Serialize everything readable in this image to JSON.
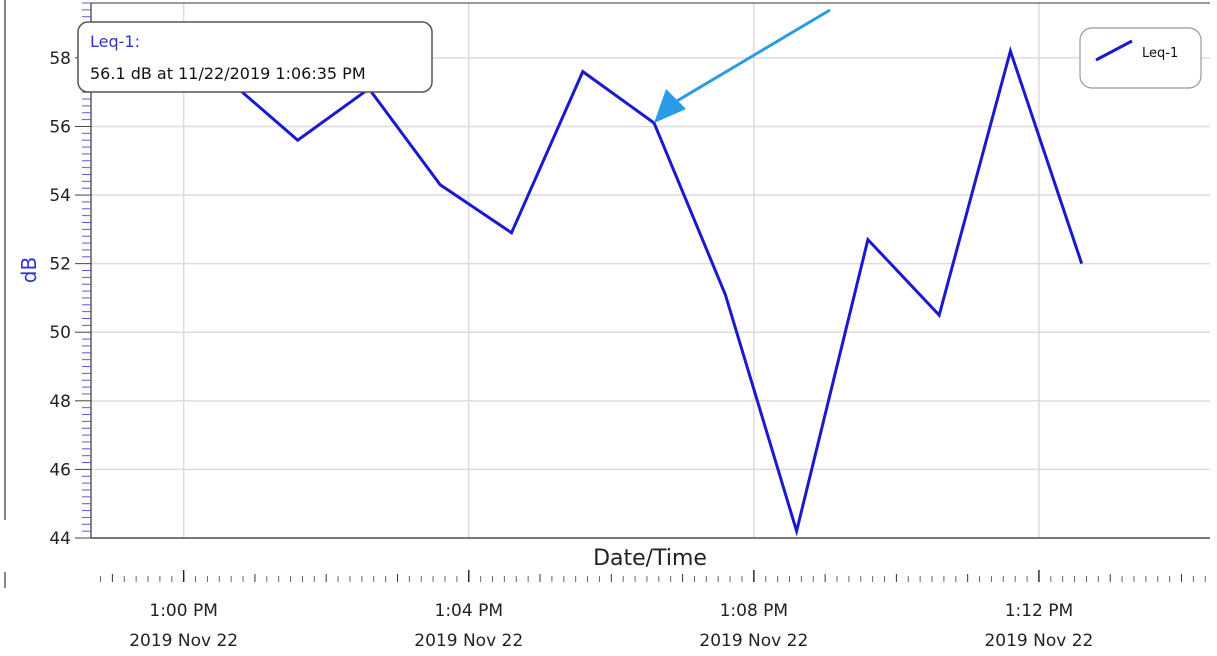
{
  "chart_data": {
    "type": "line",
    "xlabel": "Date/Time",
    "ylabel": "dB",
    "ylim": [
      44,
      59.6
    ],
    "y_ticks": [
      44,
      46,
      48,
      50,
      52,
      54,
      56,
      58
    ],
    "x_range_minutes": [
      -1.3,
      14.4
    ],
    "x_ticks": [
      {
        "minute": 0,
        "time": "1:00 PM",
        "date": "2019 Nov 22"
      },
      {
        "minute": 4,
        "time": "1:04 PM",
        "date": "2019 Nov 22"
      },
      {
        "minute": 8,
        "time": "1:08 PM",
        "date": "2019 Nov 22"
      },
      {
        "minute": 12,
        "time": "1:12 PM",
        "date": "2019 Nov 22"
      }
    ],
    "grid": true,
    "legend": {
      "position": "top-right",
      "entries": [
        "Leq-1"
      ]
    },
    "series": [
      {
        "name": "Leq-1",
        "color": "#1a1acc",
        "x": [
          "12:59 PM",
          "1:00 PM",
          "1:01 PM",
          "1:02 PM",
          "1:03 PM",
          "1:04 PM",
          "1:05 PM",
          "1:06 PM",
          "1:07 PM",
          "1:08 PM",
          "1:09 PM",
          "1:10 PM",
          "1:11 PM",
          "1:12 PM"
        ],
        "x_minutes": [
          -0.6,
          0.6,
          1.6,
          2.6,
          3.6,
          4.6,
          5.6,
          6.6,
          7.6,
          8.6,
          9.6,
          10.6,
          11.6,
          12.6
        ],
        "values": [
          57.6,
          57.4,
          55.6,
          57.1,
          54.3,
          52.9,
          57.6,
          56.1,
          51.1,
          44.2,
          52.7,
          50.5,
          58.2,
          52.0
        ]
      }
    ],
    "tooltip": {
      "series": "Leq-1:",
      "text": "56.1 dB at 11/22/2019 1:06:35 PM",
      "arrow_color": "#2a9be6"
    }
  }
}
